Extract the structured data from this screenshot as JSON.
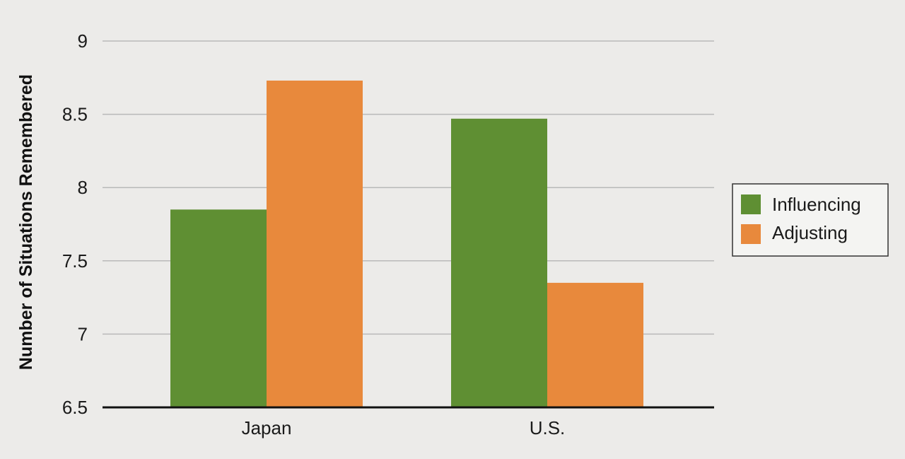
{
  "chart_data": {
    "type": "bar",
    "title": "",
    "ylabel": "Number of Situations Remembered",
    "xlabel": "",
    "categories": [
      "Japan",
      "U.S."
    ],
    "series": [
      {
        "name": "Influencing",
        "color": "#5f8f33",
        "values": [
          7.85,
          8.47
        ]
      },
      {
        "name": "Adjusting",
        "color": "#e8893c",
        "values": [
          8.73,
          7.35
        ]
      }
    ],
    "ylim": [
      6.5,
      9
    ],
    "yticks": [
      "9",
      "8.5",
      "8",
      "7.5",
      "7",
      "6.5"
    ],
    "grid": true,
    "legend": "right"
  }
}
